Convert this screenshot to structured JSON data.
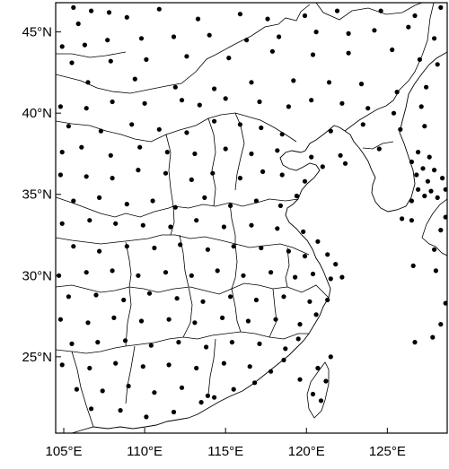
{
  "map": {
    "projection": "equirectangular",
    "lon_range": [
      104.5,
      128.7
    ],
    "lat_range": [
      20.3,
      46.8
    ],
    "x_ticks": [
      {
        "value": 105,
        "label": "105°E"
      },
      {
        "value": 110,
        "label": "110°E"
      },
      {
        "value": 115,
        "label": "115°E"
      },
      {
        "value": 120,
        "label": "120°E"
      },
      {
        "value": 125,
        "label": "125°E"
      }
    ],
    "y_ticks": [
      {
        "value": 45,
        "label": "45°N"
      },
      {
        "value": 40,
        "label": "40°N"
      },
      {
        "value": 35,
        "label": "35°N"
      },
      {
        "value": 30,
        "label": "30°N"
      },
      {
        "value": 25,
        "label": "25°N"
      }
    ],
    "stations": [
      [
        105.6,
        46.5
      ],
      [
        106.7,
        46.3
      ],
      [
        107.8,
        46.2
      ],
      [
        105.9,
        45.5
      ],
      [
        108.9,
        45.9
      ],
      [
        110.9,
        46.4
      ],
      [
        113.3,
        45.8
      ],
      [
        115.9,
        46.1
      ],
      [
        117.6,
        45.8
      ],
      [
        119.9,
        46.0
      ],
      [
        121.9,
        46.3
      ],
      [
        124.6,
        46.3
      ],
      [
        126.7,
        46.0
      ],
      [
        128.3,
        46.5
      ],
      [
        104.9,
        44.1
      ],
      [
        106.3,
        44.2
      ],
      [
        107.7,
        44.5
      ],
      [
        109.8,
        44.6
      ],
      [
        111.8,
        44.7
      ],
      [
        114.0,
        44.8
      ],
      [
        116.3,
        44.5
      ],
      [
        118.3,
        44.7
      ],
      [
        120.6,
        45.0
      ],
      [
        122.6,
        44.9
      ],
      [
        124.2,
        45.1
      ],
      [
        126.3,
        45.3
      ],
      [
        127.9,
        44.6
      ],
      [
        105.5,
        43.1
      ],
      [
        107.9,
        43.2
      ],
      [
        110.1,
        43.3
      ],
      [
        112.6,
        43.5
      ],
      [
        115.2,
        43.4
      ],
      [
        117.9,
        43.8
      ],
      [
        120.4,
        43.6
      ],
      [
        122.6,
        43.7
      ],
      [
        125.3,
        43.9
      ],
      [
        127.0,
        43.3
      ],
      [
        128.1,
        43.0
      ],
      [
        106.5,
        41.9
      ],
      [
        109.4,
        42.1
      ],
      [
        111.9,
        41.6
      ],
      [
        114.3,
        41.5
      ],
      [
        116.6,
        41.9
      ],
      [
        119.2,
        42.0
      ],
      [
        121.4,
        41.9
      ],
      [
        123.4,
        41.8
      ],
      [
        125.6,
        41.3
      ],
      [
        127.4,
        41.6
      ],
      [
        104.8,
        40.4
      ],
      [
        106.4,
        40.3
      ],
      [
        108.0,
        40.7
      ],
      [
        110.0,
        40.6
      ],
      [
        112.3,
        40.8
      ],
      [
        113.4,
        40.5
      ],
      [
        115.0,
        40.9
      ],
      [
        117.1,
        40.7
      ],
      [
        118.9,
        40.4
      ],
      [
        120.3,
        40.8
      ],
      [
        122.2,
        40.6
      ],
      [
        123.8,
        40.3
      ],
      [
        125.4,
        40.0
      ],
      [
        127.1,
        40.4
      ],
      [
        105.3,
        39.2
      ],
      [
        107.3,
        38.9
      ],
      [
        109.2,
        39.3
      ],
      [
        110.9,
        39.0
      ],
      [
        112.6,
        38.8
      ],
      [
        114.3,
        39.5
      ],
      [
        115.9,
        39.3
      ],
      [
        117.2,
        39.1
      ],
      [
        118.5,
        38.7
      ],
      [
        121.5,
        38.9
      ],
      [
        123.5,
        39.3
      ],
      [
        125.8,
        39.0
      ],
      [
        127.3,
        39.2
      ],
      [
        104.9,
        37.6
      ],
      [
        106.1,
        37.9
      ],
      [
        107.9,
        37.4
      ],
      [
        109.7,
        37.9
      ],
      [
        111.4,
        37.6
      ],
      [
        113.1,
        37.5
      ],
      [
        115.0,
        37.8
      ],
      [
        116.6,
        37.5
      ],
      [
        118.2,
        37.7
      ],
      [
        120.3,
        37.3
      ],
      [
        122.1,
        37.4
      ],
      [
        124.5,
        37.8
      ],
      [
        126.9,
        37.6
      ],
      [
        127.6,
        37.3
      ],
      [
        126.5,
        37.0
      ],
      [
        127.2,
        36.6
      ],
      [
        126.8,
        36.2
      ],
      [
        127.9,
        36.5
      ],
      [
        128.4,
        36.0
      ],
      [
        127.5,
        35.8
      ],
      [
        126.9,
        35.3
      ],
      [
        127.7,
        35.2
      ],
      [
        128.6,
        35.3
      ],
      [
        127.3,
        34.9
      ],
      [
        128.1,
        34.8
      ],
      [
        126.5,
        34.6
      ],
      [
        104.8,
        36.2
      ],
      [
        106.4,
        36.1
      ],
      [
        108.0,
        36.0
      ],
      [
        109.6,
        36.5
      ],
      [
        111.3,
        36.3
      ],
      [
        112.9,
        35.9
      ],
      [
        114.2,
        36.3
      ],
      [
        115.9,
        36.0
      ],
      [
        117.3,
        36.4
      ],
      [
        118.5,
        36.2
      ],
      [
        119.9,
        35.8
      ],
      [
        121.0,
        36.7
      ],
      [
        122.4,
        36.9
      ],
      [
        105.6,
        34.6
      ],
      [
        107.2,
        34.8
      ],
      [
        108.9,
        34.4
      ],
      [
        110.5,
        34.6
      ],
      [
        111.9,
        34.2
      ],
      [
        113.7,
        34.8
      ],
      [
        115.3,
        34.3
      ],
      [
        116.9,
        34.6
      ],
      [
        118.4,
        34.3
      ],
      [
        119.4,
        34.9
      ],
      [
        104.9,
        33.2
      ],
      [
        106.6,
        33.4
      ],
      [
        108.2,
        33.2
      ],
      [
        109.9,
        33.1
      ],
      [
        111.6,
        33.0
      ],
      [
        113.2,
        33.4
      ],
      [
        114.9,
        33.0
      ],
      [
        116.6,
        33.1
      ],
      [
        118.2,
        32.9
      ],
      [
        119.8,
        32.7
      ],
      [
        120.7,
        32.1
      ],
      [
        105.6,
        31.8
      ],
      [
        107.2,
        31.5
      ],
      [
        108.9,
        31.8
      ],
      [
        110.6,
        31.7
      ],
      [
        112.2,
        31.9
      ],
      [
        113.9,
        31.6
      ],
      [
        115.5,
        31.8
      ],
      [
        117.2,
        31.7
      ],
      [
        118.9,
        31.5
      ],
      [
        119.9,
        31.2
      ],
      [
        121.3,
        31.3
      ],
      [
        121.8,
        30.7
      ],
      [
        104.7,
        30.0
      ],
      [
        106.4,
        30.2
      ],
      [
        108.0,
        30.3
      ],
      [
        109.6,
        30.0
      ],
      [
        111.3,
        30.2
      ],
      [
        112.9,
        30.0
      ],
      [
        114.5,
        30.3
      ],
      [
        116.1,
        30.0
      ],
      [
        117.8,
        30.2
      ],
      [
        119.3,
        29.9
      ],
      [
        120.4,
        30.1
      ],
      [
        121.5,
        29.8
      ],
      [
        122.2,
        29.9
      ],
      [
        105.3,
        28.7
      ],
      [
        107.0,
        28.8
      ],
      [
        108.7,
        28.5
      ],
      [
        110.3,
        28.9
      ],
      [
        112.0,
        28.6
      ],
      [
        113.6,
        28.4
      ],
      [
        115.3,
        28.7
      ],
      [
        116.9,
        28.5
      ],
      [
        118.6,
        28.7
      ],
      [
        120.2,
        28.4
      ],
      [
        121.3,
        28.5
      ],
      [
        104.8,
        27.3
      ],
      [
        106.5,
        27.1
      ],
      [
        108.1,
        27.4
      ],
      [
        109.8,
        27.2
      ],
      [
        111.5,
        27.3
      ],
      [
        113.1,
        27.1
      ],
      [
        114.8,
        27.4
      ],
      [
        116.4,
        27.2
      ],
      [
        118.1,
        27.3
      ],
      [
        119.6,
        27.0
      ],
      [
        120.6,
        27.6
      ],
      [
        105.5,
        25.8
      ],
      [
        107.1,
        25.9
      ],
      [
        108.8,
        26.0
      ],
      [
        110.4,
        25.7
      ],
      [
        112.1,
        25.9
      ],
      [
        113.8,
        25.6
      ],
      [
        115.4,
        25.9
      ],
      [
        117.1,
        25.8
      ],
      [
        118.7,
        25.5
      ],
      [
        119.5,
        26.1
      ],
      [
        104.9,
        24.5
      ],
      [
        106.6,
        24.3
      ],
      [
        108.2,
        24.6
      ],
      [
        109.9,
        24.4
      ],
      [
        111.5,
        24.5
      ],
      [
        113.2,
        24.3
      ],
      [
        114.9,
        24.6
      ],
      [
        116.5,
        24.4
      ],
      [
        117.8,
        24.1
      ],
      [
        118.6,
        24.8
      ],
      [
        105.8,
        23.0
      ],
      [
        107.4,
        22.9
      ],
      [
        109.0,
        23.2
      ],
      [
        110.6,
        22.8
      ],
      [
        112.3,
        23.1
      ],
      [
        113.9,
        22.6
      ],
      [
        114.3,
        22.5
      ],
      [
        115.5,
        23.0
      ],
      [
        116.8,
        23.4
      ],
      [
        106.7,
        21.8
      ],
      [
        108.5,
        21.7
      ],
      [
        110.1,
        21.3
      ],
      [
        111.8,
        21.6
      ],
      [
        113.5,
        22.2
      ],
      [
        120.7,
        24.3
      ],
      [
        121.2,
        23.5
      ],
      [
        120.4,
        22.7
      ],
      [
        121.5,
        25.0
      ],
      [
        120.9,
        22.3
      ],
      [
        119.6,
        23.6
      ],
      [
        126.7,
        25.9
      ],
      [
        127.8,
        26.2
      ],
      [
        128.3,
        27.0
      ],
      [
        128.6,
        28.3
      ],
      [
        128.0,
        30.3
      ],
      [
        126.6,
        30.6
      ],
      [
        127.9,
        31.6
      ],
      [
        128.3,
        32.8
      ],
      [
        128.6,
        33.6
      ],
      [
        125.9,
        33.5
      ],
      [
        126.5,
        33.4
      ],
      [
        129.0,
        34.5
      ]
    ],
    "colors": {
      "background": "#ffffff",
      "line": "#000000",
      "station": "#000000"
    },
    "station_icon": "filled-circle"
  }
}
